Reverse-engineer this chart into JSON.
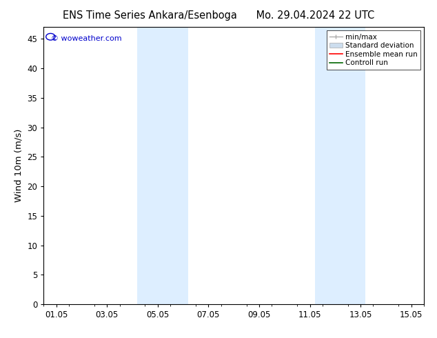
{
  "title_left": "ENS Time Series Ankara/Esenboga",
  "title_right": "Mo. 29.04.2024 22 UTC",
  "ylabel": "Wind 10m (m/s)",
  "ylim": [
    0,
    47
  ],
  "yticks": [
    0,
    5,
    10,
    15,
    20,
    25,
    30,
    35,
    40,
    45
  ],
  "xtick_labels": [
    "01.05",
    "03.05",
    "05.05",
    "07.05",
    "09.05",
    "11.05",
    "13.05",
    "15.05"
  ],
  "xmin": -0.5,
  "xmax": 14.5,
  "shaded_regions": [
    [
      3.2,
      4.2
    ],
    [
      4.2,
      5.2
    ],
    [
      10.2,
      11.2
    ],
    [
      11.2,
      12.2
    ]
  ],
  "shaded_color": "#ddeeff",
  "background_color": "#ffffff",
  "watermark_text": "© woweather.com",
  "watermark_color": "#0000cc",
  "legend_items": [
    {
      "label": "min/max",
      "color": "#aaaaaa",
      "lw": 1.0,
      "ls": "-"
    },
    {
      "label": "Standard deviation",
      "color": "#ccddee",
      "lw": 5,
      "ls": "-"
    },
    {
      "label": "Ensemble mean run",
      "color": "#ff0000",
      "lw": 1.2,
      "ls": "-"
    },
    {
      "label": "Controll run",
      "color": "#006600",
      "lw": 1.2,
      "ls": "-"
    }
  ],
  "tick_fontsize": 8.5,
  "ylabel_fontsize": 9.5,
  "title_fontsize": 10.5,
  "legend_fontsize": 7.5
}
